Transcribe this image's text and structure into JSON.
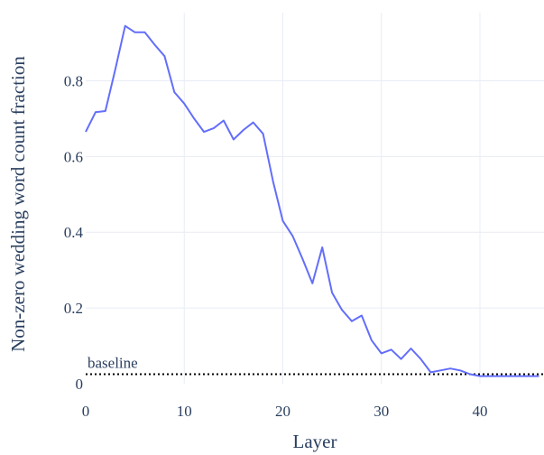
{
  "chart_data": {
    "type": "line",
    "title": "",
    "xlabel": "Layer",
    "ylabel": "Non-zero wedding word count fraction",
    "xlim": [
      0,
      46.5
    ],
    "ylim": [
      0,
      0.98
    ],
    "xticks": [
      0,
      10,
      20,
      30,
      40
    ],
    "xtick_labels": [
      "0",
      "10",
      "20",
      "30",
      "40"
    ],
    "yticks": [
      0,
      0.2,
      0.4,
      0.6,
      0.8
    ],
    "ytick_labels": [
      "0",
      "0.2",
      "0.4",
      "0.6",
      "0.8"
    ],
    "grid": true,
    "legend": "none",
    "series": [
      {
        "color": "#636efa",
        "x": [
          0,
          1,
          2,
          3,
          4,
          5,
          6,
          7,
          8,
          9,
          10,
          11,
          12,
          13,
          14,
          15,
          16,
          17,
          18,
          19,
          20,
          21,
          22,
          23,
          24,
          25,
          26,
          27,
          28,
          29,
          30,
          31,
          32,
          33,
          34,
          35,
          36,
          37,
          38,
          39,
          40,
          41,
          42,
          43,
          44,
          45,
          46
        ],
        "y": [
          0.665,
          0.717,
          0.72,
          0.83,
          0.945,
          0.928,
          0.928,
          0.895,
          0.865,
          0.77,
          0.74,
          0.7,
          0.665,
          0.675,
          0.695,
          0.645,
          0.67,
          0.69,
          0.66,
          0.535,
          0.43,
          0.39,
          0.33,
          0.265,
          0.36,
          0.24,
          0.195,
          0.165,
          0.18,
          0.115,
          0.08,
          0.09,
          0.065,
          0.093,
          0.065,
          0.03,
          0.035,
          0.04,
          0.035,
          0.025,
          0.02,
          0.02,
          0.02,
          0.02,
          0.02,
          0.02,
          0.02
        ]
      }
    ],
    "baseline": {
      "label": "baseline",
      "value": 0.025,
      "color": "#000000"
    }
  }
}
